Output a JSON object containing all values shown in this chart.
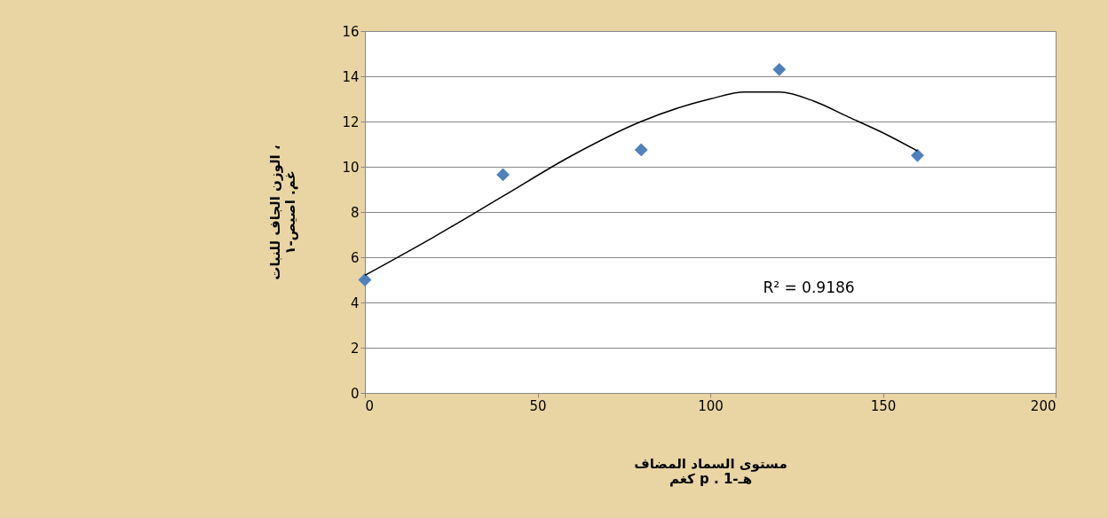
{
  "chart_data": {
    "type": "scatter",
    "xlabel": [
      "مستوى السماد المضاف",
      "كغم p . هـ-1"
    ],
    "ylabel": [
      "الوزن الجاف للنبات ،",
      "غم. اصيص-١"
    ],
    "x": [
      0,
      40,
      80,
      120,
      160
    ],
    "series": [
      {
        "color": "#4f81bd",
        "marker": "diamond",
        "values": [
          5.0,
          9.65,
          10.75,
          14.3,
          10.5
        ]
      },
      {
        "type": "line",
        "color": "#000000",
        "marker": "none",
        "x": [
          0,
          20,
          40,
          60,
          80,
          100,
          110,
          120,
          130,
          140,
          150,
          160
        ],
        "values": [
          5.2,
          6.9,
          8.7,
          10.5,
          12.0,
          13.0,
          13.3,
          13.3,
          12.9,
          12.2,
          11.5,
          10.7
        ]
      }
    ],
    "annotations": [
      {
        "text": "R² = 0.9186"
      }
    ],
    "xlim": [
      0,
      200
    ],
    "xticks": [
      0,
      50,
      100,
      150,
      200
    ],
    "ylim": [
      0,
      16
    ],
    "yticks": [
      0,
      2,
      4,
      6,
      8,
      10,
      12,
      14,
      16
    ],
    "grid": "y",
    "legend": false
  }
}
